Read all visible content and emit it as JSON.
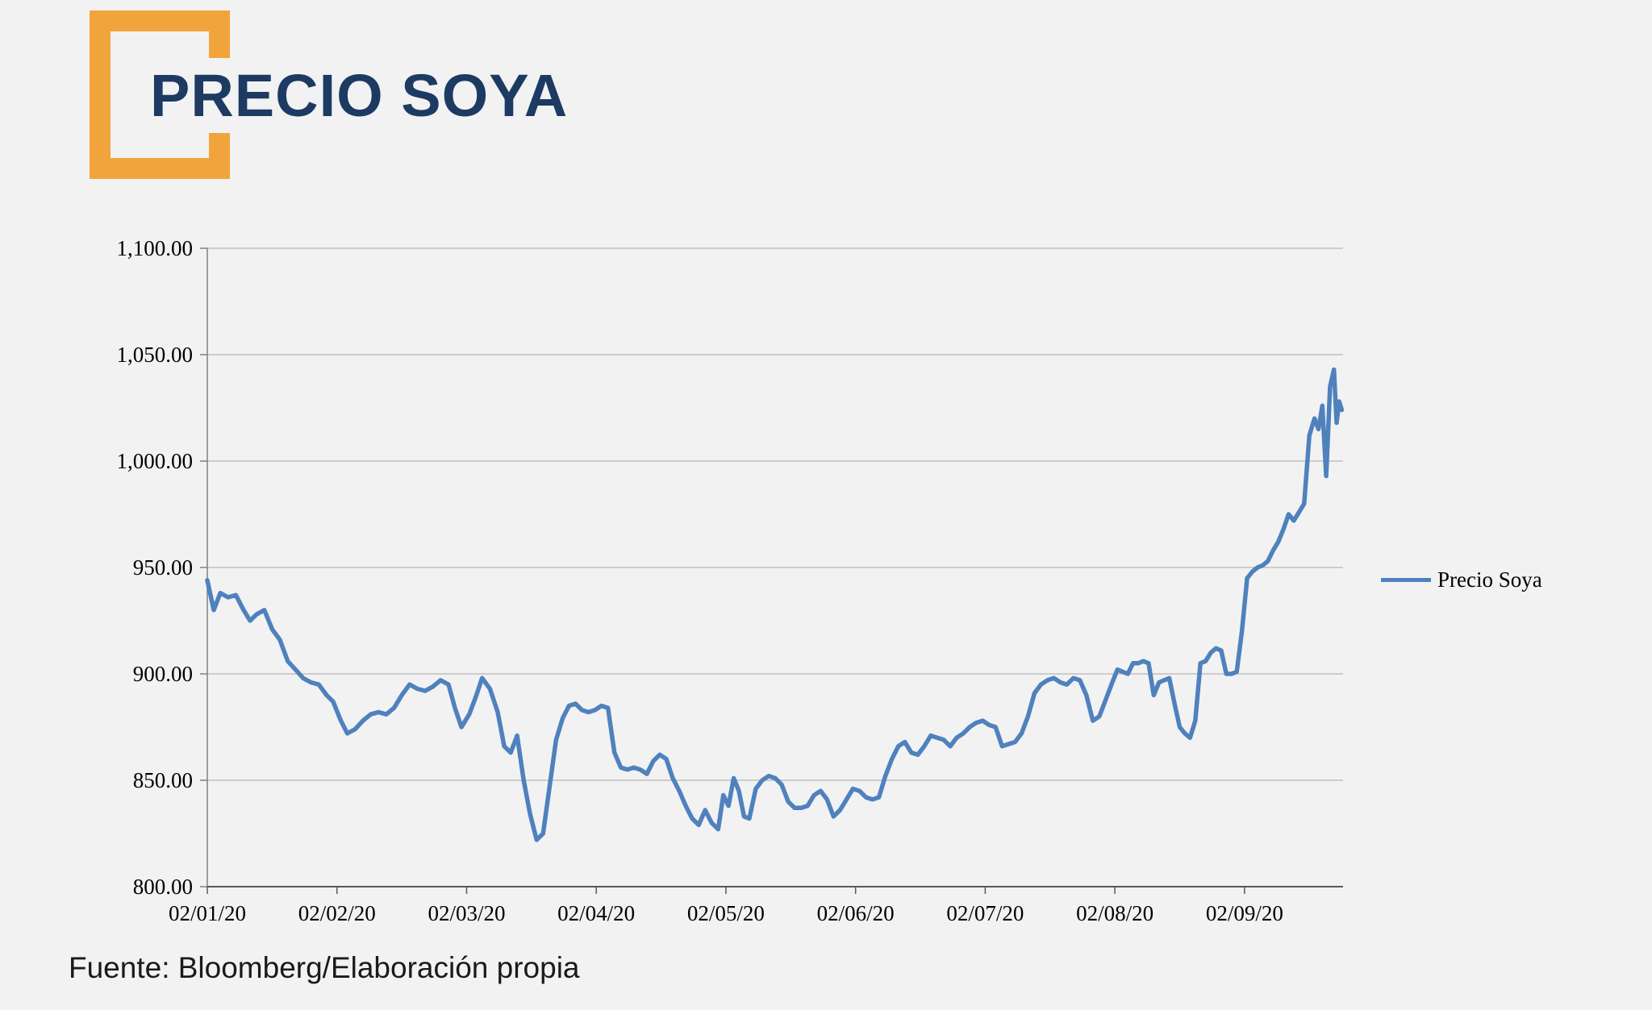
{
  "page": {
    "background": "#f2f2f3"
  },
  "logo": {
    "title": "PRECIO SOYA",
    "accent_color": "#f2a43c",
    "title_color": "#1d3a63"
  },
  "legend": {
    "label": "Precio Soya"
  },
  "footer": {
    "source": "Fuente: Bloomberg/Elaboración propia"
  },
  "chart_data": {
    "type": "line",
    "title": "PRECIO SOYA",
    "grid": "horizontal",
    "legend_position": "right",
    "colors": {
      "gridline": "#a6a6a6",
      "axis": "#595959",
      "line": "#4f81bd"
    },
    "x_axis": {
      "unit": "months from 02/01/20 (dd/mm/yy)",
      "tick_labels": [
        "02/01/20",
        "02/02/20",
        "02/03/20",
        "02/04/20",
        "02/05/20",
        "02/06/20",
        "02/07/20",
        "02/08/20",
        "02/09/20"
      ],
      "tick_positions": [
        0,
        1,
        2,
        3,
        4,
        5,
        6,
        7,
        8
      ],
      "max": 8.76
    },
    "y_axis": {
      "range": [
        800,
        1100
      ],
      "tick_values": [
        800,
        850,
        900,
        950,
        1000,
        1050,
        1100
      ],
      "tick_labels": [
        "800.00",
        "850.00",
        "900.00",
        "950.00",
        "1,000.00",
        "1,050.00",
        "1,100.00"
      ]
    },
    "series": [
      {
        "name": "Precio Soya",
        "color": "#4f81bd",
        "points": [
          [
            0.0,
            944
          ],
          [
            0.05,
            930
          ],
          [
            0.1,
            938
          ],
          [
            0.16,
            936
          ],
          [
            0.22,
            937
          ],
          [
            0.28,
            930
          ],
          [
            0.33,
            925
          ],
          [
            0.38,
            928
          ],
          [
            0.44,
            930
          ],
          [
            0.5,
            921
          ],
          [
            0.56,
            916
          ],
          [
            0.62,
            906
          ],
          [
            0.68,
            902
          ],
          [
            0.74,
            898
          ],
          [
            0.8,
            896
          ],
          [
            0.86,
            895
          ],
          [
            0.92,
            890
          ],
          [
            0.97,
            887
          ],
          [
            1.03,
            878
          ],
          [
            1.08,
            872
          ],
          [
            1.14,
            874
          ],
          [
            1.2,
            878
          ],
          [
            1.26,
            881
          ],
          [
            1.32,
            882
          ],
          [
            1.38,
            881
          ],
          [
            1.44,
            884
          ],
          [
            1.5,
            890
          ],
          [
            1.56,
            895
          ],
          [
            1.62,
            893
          ],
          [
            1.68,
            892
          ],
          [
            1.74,
            894
          ],
          [
            1.8,
            897
          ],
          [
            1.86,
            895
          ],
          [
            1.91,
            884
          ],
          [
            1.96,
            875
          ],
          [
            2.02,
            881
          ],
          [
            2.07,
            889
          ],
          [
            2.12,
            898
          ],
          [
            2.18,
            893
          ],
          [
            2.24,
            882
          ],
          [
            2.29,
            866
          ],
          [
            2.34,
            863
          ],
          [
            2.39,
            871
          ],
          [
            2.44,
            850
          ],
          [
            2.49,
            834
          ],
          [
            2.54,
            822
          ],
          [
            2.59,
            825
          ],
          [
            2.64,
            847
          ],
          [
            2.69,
            869
          ],
          [
            2.74,
            879
          ],
          [
            2.79,
            885
          ],
          [
            2.84,
            886
          ],
          [
            2.89,
            883
          ],
          [
            2.94,
            882
          ],
          [
            2.99,
            883
          ],
          [
            3.04,
            885
          ],
          [
            3.09,
            884
          ],
          [
            3.14,
            863
          ],
          [
            3.19,
            856
          ],
          [
            3.24,
            855
          ],
          [
            3.29,
            856
          ],
          [
            3.34,
            855
          ],
          [
            3.39,
            853
          ],
          [
            3.44,
            859
          ],
          [
            3.49,
            862
          ],
          [
            3.54,
            860
          ],
          [
            3.59,
            851
          ],
          [
            3.64,
            845
          ],
          [
            3.69,
            838
          ],
          [
            3.74,
            832
          ],
          [
            3.79,
            829
          ],
          [
            3.84,
            836
          ],
          [
            3.89,
            830
          ],
          [
            3.94,
            827
          ],
          [
            3.98,
            843
          ],
          [
            4.02,
            838
          ],
          [
            4.06,
            851
          ],
          [
            4.1,
            845
          ],
          [
            4.14,
            833
          ],
          [
            4.18,
            832
          ],
          [
            4.23,
            846
          ],
          [
            4.28,
            850
          ],
          [
            4.33,
            852
          ],
          [
            4.38,
            851
          ],
          [
            4.43,
            848
          ],
          [
            4.48,
            840
          ],
          [
            4.53,
            837
          ],
          [
            4.58,
            837
          ],
          [
            4.63,
            838
          ],
          [
            4.68,
            843
          ],
          [
            4.73,
            845
          ],
          [
            4.78,
            841
          ],
          [
            4.83,
            833
          ],
          [
            4.88,
            836
          ],
          [
            4.93,
            841
          ],
          [
            4.98,
            846
          ],
          [
            5.03,
            845
          ],
          [
            5.08,
            842
          ],
          [
            5.13,
            841
          ],
          [
            5.18,
            842
          ],
          [
            5.23,
            852
          ],
          [
            5.28,
            860
          ],
          [
            5.33,
            866
          ],
          [
            5.38,
            868
          ],
          [
            5.43,
            863
          ],
          [
            5.48,
            862
          ],
          [
            5.53,
            866
          ],
          [
            5.58,
            871
          ],
          [
            5.63,
            870
          ],
          [
            5.68,
            869
          ],
          [
            5.73,
            866
          ],
          [
            5.78,
            870
          ],
          [
            5.83,
            872
          ],
          [
            5.88,
            875
          ],
          [
            5.93,
            877
          ],
          [
            5.98,
            878
          ],
          [
            6.03,
            876
          ],
          [
            6.08,
            875
          ],
          [
            6.13,
            866
          ],
          [
            6.18,
            867
          ],
          [
            6.23,
            868
          ],
          [
            6.28,
            872
          ],
          [
            6.33,
            880
          ],
          [
            6.38,
            891
          ],
          [
            6.43,
            895
          ],
          [
            6.48,
            897
          ],
          [
            6.53,
            898
          ],
          [
            6.58,
            896
          ],
          [
            6.63,
            895
          ],
          [
            6.68,
            898
          ],
          [
            6.73,
            897
          ],
          [
            6.78,
            890
          ],
          [
            6.83,
            878
          ],
          [
            6.88,
            880
          ],
          [
            6.93,
            888
          ],
          [
            6.98,
            896
          ],
          [
            7.02,
            902
          ],
          [
            7.06,
            901
          ],
          [
            7.1,
            900
          ],
          [
            7.14,
            905
          ],
          [
            7.18,
            905
          ],
          [
            7.22,
            906
          ],
          [
            7.26,
            905
          ],
          [
            7.3,
            890
          ],
          [
            7.34,
            896
          ],
          [
            7.38,
            897
          ],
          [
            7.42,
            898
          ],
          [
            7.46,
            886
          ],
          [
            7.5,
            875
          ],
          [
            7.54,
            872
          ],
          [
            7.58,
            870
          ],
          [
            7.62,
            878
          ],
          [
            7.66,
            905
          ],
          [
            7.7,
            906
          ],
          [
            7.74,
            910
          ],
          [
            7.78,
            912
          ],
          [
            7.82,
            911
          ],
          [
            7.86,
            900
          ],
          [
            7.9,
            900
          ],
          [
            7.94,
            901
          ],
          [
            7.98,
            920
          ],
          [
            8.02,
            945
          ],
          [
            8.06,
            948
          ],
          [
            8.1,
            950
          ],
          [
            8.14,
            951
          ],
          [
            8.18,
            953
          ],
          [
            8.22,
            958
          ],
          [
            8.26,
            962
          ],
          [
            8.3,
            968
          ],
          [
            8.34,
            975
          ],
          [
            8.38,
            972
          ],
          [
            8.42,
            976
          ],
          [
            8.46,
            980
          ],
          [
            8.5,
            1012
          ],
          [
            8.54,
            1020
          ],
          [
            8.57,
            1015
          ],
          [
            8.6,
            1026
          ],
          [
            8.63,
            993
          ],
          [
            8.66,
            1035
          ],
          [
            8.69,
            1043
          ],
          [
            8.71,
            1018
          ],
          [
            8.73,
            1028
          ],
          [
            8.75,
            1024
          ]
        ]
      }
    ]
  }
}
